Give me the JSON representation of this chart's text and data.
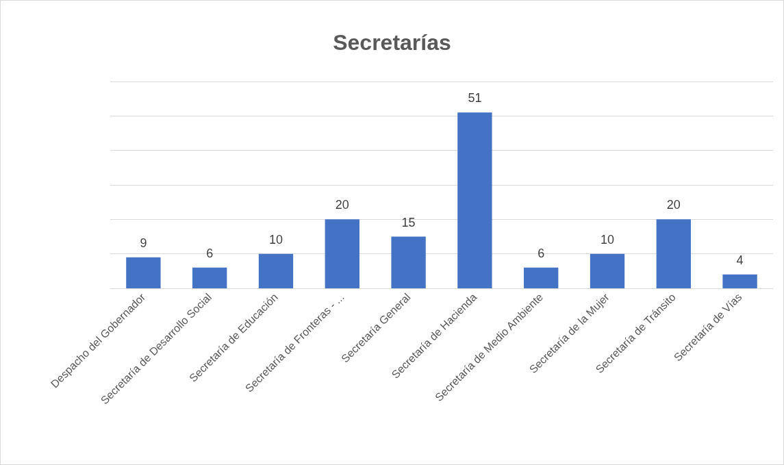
{
  "chart_data": {
    "type": "bar",
    "title": "Secretarías",
    "categories": [
      "Despacho del Gobernador",
      "Secretaría de Desarrollo Social",
      "Secretaría de Educación",
      "Secretaría de Fronteras - ...",
      "Secretaría General",
      "Secretaría de Hacienda",
      "Secretaría de Medio Ambiente",
      "Secretaría de la Mujer",
      "Secretaría de Tránsito",
      "Secretaría de Vías"
    ],
    "values": [
      9,
      6,
      10,
      20,
      15,
      51,
      6,
      10,
      20,
      4
    ],
    "color": "#4472c4",
    "data_labels": true,
    "grid": "y",
    "tick_labels": "x",
    "ylim": [
      0,
      60
    ],
    "yticks": [
      {
        "value": 0,
        "label": null
      },
      {
        "value": 10,
        "label": null
      },
      {
        "value": 20,
        "label": null
      },
      {
        "value": 30,
        "label": null
      },
      {
        "value": 40,
        "label": null
      },
      {
        "value": 50,
        "label": null
      },
      {
        "value": 60,
        "label": null
      }
    ]
  }
}
